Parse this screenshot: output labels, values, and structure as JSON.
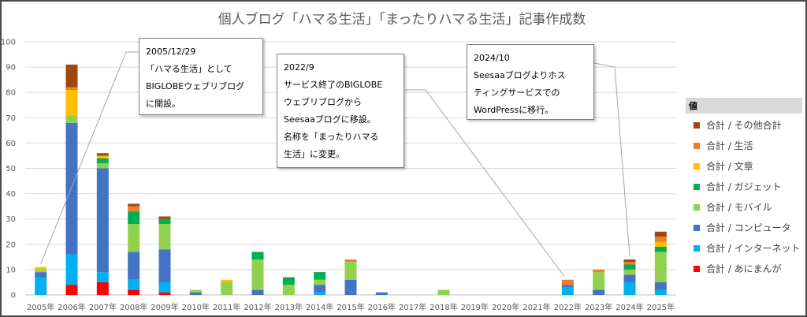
{
  "chart_data": {
    "type": "bar",
    "stacked": true,
    "title": "個人ブログ「ハマる生活」「まったりハマる生活」記事作成数",
    "xlabel": "",
    "ylabel": "",
    "ylim": [
      0,
      100
    ],
    "yticks": [
      0,
      10,
      20,
      30,
      40,
      50,
      60,
      70,
      80,
      90,
      100
    ],
    "grid": true,
    "legend_position": "right",
    "legend_title": "値",
    "categories": [
      "2005年",
      "2006年",
      "2007年",
      "2008年",
      "2009年",
      "2010年",
      "2011年",
      "2012年",
      "2013年",
      "2014年",
      "2015年",
      "2016年",
      "2017年",
      "2018年",
      "2019年",
      "2020年",
      "2021年",
      "2022年",
      "2023年",
      "2024年",
      "2025年"
    ],
    "series": [
      {
        "name": "合計 / あにまんが",
        "color": "#ff0000",
        "values": [
          0,
          4,
          5,
          2,
          1,
          0,
          0,
          0,
          0,
          0,
          0,
          0,
          0,
          0,
          0,
          0,
          0,
          0,
          0,
          0,
          0
        ]
      },
      {
        "name": "合計 / インターネット",
        "color": "#00b0f0",
        "values": [
          7,
          12,
          4,
          4,
          4,
          0,
          0,
          0,
          0,
          1,
          0,
          0,
          0,
          0,
          0,
          0,
          0,
          3,
          0,
          5,
          2
        ]
      },
      {
        "name": "合計 / コンピュータ",
        "color": "#4472c4",
        "values": [
          2,
          52,
          41,
          11,
          13,
          1,
          0,
          2,
          0,
          3,
          6,
          1,
          0,
          0,
          0,
          0,
          0,
          1,
          2,
          3,
          3
        ]
      },
      {
        "name": "合計 / モバイル",
        "color": "#92d050",
        "values": [
          1,
          3,
          2,
          11,
          10,
          1,
          5,
          12,
          4,
          2,
          7,
          0,
          0,
          2,
          0,
          0,
          0,
          0,
          7,
          2,
          12
        ]
      },
      {
        "name": "合計 / ガジェット",
        "color": "#00b050",
        "values": [
          0,
          0,
          2,
          5,
          2,
          0,
          0,
          3,
          3,
          3,
          0,
          0,
          0,
          0,
          0,
          0,
          0,
          0,
          0,
          2,
          2
        ]
      },
      {
        "name": "合計 / 文章",
        "color": "#ffc000",
        "values": [
          1,
          10,
          1,
          0,
          0,
          0,
          1,
          0,
          0,
          0,
          0,
          0,
          0,
          0,
          0,
          0,
          0,
          0,
          0,
          0,
          2
        ]
      },
      {
        "name": "合計 / 生活",
        "color": "#ed7d31",
        "values": [
          0,
          1,
          0,
          2,
          0,
          0,
          0,
          0,
          0,
          0,
          1,
          0,
          0,
          0,
          0,
          0,
          0,
          2,
          1,
          1,
          2
        ]
      },
      {
        "name": "合計 / その他合計",
        "color": "#9e480e",
        "values": [
          0,
          9,
          1,
          1,
          1,
          0,
          0,
          0,
          0,
          0,
          0,
          0,
          0,
          0,
          0,
          0,
          0,
          0,
          0,
          1,
          2
        ]
      }
    ],
    "annotations": [
      {
        "id": "ann-2005",
        "year": "2005年",
        "lines": [
          "2005/12/29",
          "「ハマる生活」として",
          "BIGLOBEウェブリブログ",
          "に開設。"
        ]
      },
      {
        "id": "ann-2022",
        "year": "2022年",
        "lines": [
          "2022/9",
          "サービス終了のBIGLOBE",
          "ウェブリブログから",
          "Seesaaブログに移設。",
          "名称を「まったりハマる",
          "生活」に変更。"
        ]
      },
      {
        "id": "ann-2024",
        "year": "2024年",
        "lines": [
          "2024/10",
          "Seesaaブログよりホス",
          "ティングサービスでの",
          "WordPressに移行。"
        ]
      }
    ]
  }
}
